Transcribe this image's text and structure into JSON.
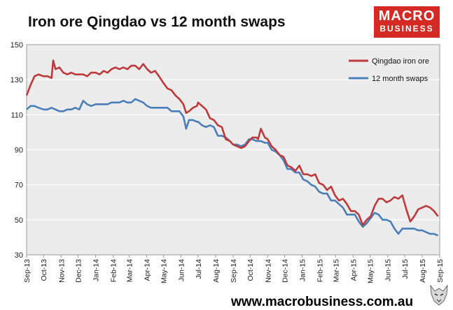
{
  "title": "Iron ore Qingdao vs 12 month swaps",
  "logo": {
    "line1": "MACRO",
    "line2": "BUSINESS",
    "color": "#d42a23"
  },
  "footer": {
    "url": "www.macrobusiness.com.au",
    "icon": "wolf-logo-icon"
  },
  "chart_data": {
    "type": "line",
    "title": "Iron ore Qingdao vs 12 month swaps",
    "xlabel": "",
    "ylabel": "",
    "ylim": [
      30,
      150
    ],
    "yticks": [
      30,
      50,
      70,
      90,
      110,
      130,
      150
    ],
    "xlim": [
      "2013-09-01",
      "2015-09-01"
    ],
    "xtick_labels": [
      "Sep-13",
      "Oct-13",
      "Nov-13",
      "Dec-13",
      "Jan-14",
      "Feb-14",
      "Mar-14",
      "Apr-14",
      "May-14",
      "Jun-14",
      "Jul-14",
      "Aug-14",
      "Sep-14",
      "Oct-14",
      "Nov-14",
      "Dec-14",
      "Jan-15",
      "Feb-15",
      "Mar-15",
      "Apr-15",
      "May-15",
      "Jun-15",
      "Jul-15",
      "Aug-15",
      "Sep-15"
    ],
    "grid": "horizontal",
    "legend": "top-right",
    "plot_background": "#ececec",
    "series": [
      {
        "name": "Qingdao iron ore",
        "color": "#c0393a",
        "x": [
          "2013-09-01",
          "2013-09-08",
          "2013-09-15",
          "2013-09-22",
          "2013-10-01",
          "2013-10-08",
          "2013-10-15",
          "2013-10-18",
          "2013-10-22",
          "2013-10-29",
          "2013-11-05",
          "2013-11-12",
          "2013-11-19",
          "2013-11-26",
          "2013-12-03",
          "2013-12-10",
          "2013-12-17",
          "2013-12-24",
          "2014-01-01",
          "2014-01-08",
          "2014-01-15",
          "2014-01-22",
          "2014-01-29",
          "2014-02-05",
          "2014-02-12",
          "2014-02-19",
          "2014-02-26",
          "2014-03-05",
          "2014-03-12",
          "2014-03-19",
          "2014-03-26",
          "2014-04-02",
          "2014-04-09",
          "2014-04-16",
          "2014-04-23",
          "2014-05-01",
          "2014-05-08",
          "2014-05-15",
          "2014-05-22",
          "2014-05-29",
          "2014-06-05",
          "2014-06-10",
          "2014-06-15",
          "2014-06-22",
          "2014-06-29",
          "2014-07-01",
          "2014-07-08",
          "2014-07-15",
          "2014-07-22",
          "2014-07-29",
          "2014-08-05",
          "2014-08-12",
          "2014-08-19",
          "2014-08-26",
          "2014-09-01",
          "2014-09-08",
          "2014-09-15",
          "2014-09-22",
          "2014-09-29",
          "2014-10-05",
          "2014-10-12",
          "2014-10-15",
          "2014-10-20",
          "2014-10-27",
          "2014-11-01",
          "2014-11-08",
          "2014-11-15",
          "2014-11-22",
          "2014-11-29",
          "2014-12-06",
          "2014-12-13",
          "2014-12-20",
          "2014-12-27",
          "2015-01-03",
          "2015-01-10",
          "2015-01-17",
          "2015-01-24",
          "2015-01-31",
          "2015-02-07",
          "2015-02-14",
          "2015-02-21",
          "2015-02-28",
          "2015-03-07",
          "2015-03-14",
          "2015-03-21",
          "2015-03-28",
          "2015-04-04",
          "2015-04-11",
          "2015-04-18",
          "2015-04-25",
          "2015-05-02",
          "2015-05-09",
          "2015-05-16",
          "2015-05-23",
          "2015-05-30",
          "2015-06-06",
          "2015-06-13",
          "2015-06-20",
          "2015-06-27",
          "2015-07-04",
          "2015-07-11",
          "2015-07-18",
          "2015-07-25",
          "2015-08-01",
          "2015-08-08",
          "2015-08-15",
          "2015-08-22",
          "2015-08-29"
        ],
        "values": [
          121,
          127,
          132,
          133,
          132,
          132,
          131,
          141,
          136,
          137,
          134,
          133,
          134,
          133,
          133,
          133,
          132,
          134,
          134,
          133,
          135,
          134,
          136,
          137,
          136,
          137,
          136,
          138,
          138,
          136,
          139,
          136,
          134,
          135,
          132,
          128,
          125,
          124,
          121,
          119,
          116,
          111,
          112,
          114,
          115,
          117,
          115,
          113,
          108,
          107,
          104,
          103,
          96,
          95,
          93,
          92,
          91,
          92,
          95,
          97,
          97,
          96,
          102,
          97,
          96,
          92,
          90,
          87,
          86,
          81,
          80,
          78,
          81,
          76,
          76,
          75,
          76,
          71,
          70,
          67,
          69,
          64,
          61,
          62,
          59,
          55,
          55,
          53,
          47,
          50,
          52,
          58,
          62,
          62,
          60,
          61,
          63,
          62,
          64,
          56,
          49,
          52,
          56,
          57,
          58,
          57,
          55,
          52
        ]
      },
      {
        "name": "12 month swaps",
        "color": "#4a7ebb",
        "x": [
          "2013-09-01",
          "2013-09-08",
          "2013-09-15",
          "2013-09-22",
          "2013-10-01",
          "2013-10-08",
          "2013-10-15",
          "2013-10-22",
          "2013-10-29",
          "2013-11-05",
          "2013-11-12",
          "2013-11-19",
          "2013-11-26",
          "2013-12-03",
          "2013-12-10",
          "2013-12-17",
          "2013-12-24",
          "2014-01-01",
          "2014-01-08",
          "2014-01-15",
          "2014-01-22",
          "2014-01-29",
          "2014-02-05",
          "2014-02-12",
          "2014-02-19",
          "2014-02-26",
          "2014-03-05",
          "2014-03-12",
          "2014-03-19",
          "2014-03-26",
          "2014-04-02",
          "2014-04-09",
          "2014-04-16",
          "2014-04-23",
          "2014-05-01",
          "2014-05-08",
          "2014-05-15",
          "2014-05-22",
          "2014-05-29",
          "2014-06-05",
          "2014-06-10",
          "2014-06-15",
          "2014-06-22",
          "2014-06-29",
          "2014-07-01",
          "2014-07-08",
          "2014-07-15",
          "2014-07-22",
          "2014-07-29",
          "2014-08-05",
          "2014-08-12",
          "2014-08-19",
          "2014-08-26",
          "2014-09-01",
          "2014-09-08",
          "2014-09-15",
          "2014-09-22",
          "2014-09-29",
          "2014-10-05",
          "2014-10-12",
          "2014-10-20",
          "2014-10-27",
          "2014-11-01",
          "2014-11-08",
          "2014-11-15",
          "2014-11-22",
          "2014-11-29",
          "2014-12-06",
          "2014-12-13",
          "2014-12-20",
          "2014-12-27",
          "2015-01-03",
          "2015-01-10",
          "2015-01-17",
          "2015-01-24",
          "2015-01-31",
          "2015-02-07",
          "2015-02-14",
          "2015-02-21",
          "2015-02-28",
          "2015-03-07",
          "2015-03-14",
          "2015-03-21",
          "2015-03-28",
          "2015-04-04",
          "2015-04-11",
          "2015-04-18",
          "2015-04-25",
          "2015-05-02",
          "2015-05-09",
          "2015-05-16",
          "2015-05-23",
          "2015-05-30",
          "2015-06-06",
          "2015-06-13",
          "2015-06-20",
          "2015-06-27",
          "2015-07-04",
          "2015-07-11",
          "2015-07-18",
          "2015-07-25",
          "2015-08-01",
          "2015-08-08",
          "2015-08-15",
          "2015-08-22",
          "2015-08-29"
        ],
        "values": [
          113,
          115,
          115,
          114,
          113,
          113,
          114,
          113,
          112,
          112,
          113,
          113,
          114,
          113,
          118,
          116,
          115,
          116,
          116,
          116,
          116,
          117,
          117,
          117,
          118,
          117,
          117,
          119,
          118,
          117,
          115,
          114,
          114,
          114,
          114,
          114,
          112,
          112,
          112,
          109,
          102,
          107,
          107,
          106,
          106,
          104,
          103,
          104,
          103,
          98,
          98,
          97,
          95,
          93,
          93,
          92,
          93,
          96,
          96,
          95,
          95,
          94,
          94,
          90,
          89,
          87,
          84,
          79,
          79,
          77,
          77,
          73,
          72,
          70,
          69,
          66,
          65,
          65,
          61,
          61,
          59,
          57,
          53,
          53,
          53,
          49,
          46,
          48,
          51,
          54,
          53,
          50,
          50,
          49,
          45,
          42,
          45,
          45,
          45,
          45,
          44,
          44,
          43,
          42,
          42,
          41
        ]
      }
    ]
  }
}
